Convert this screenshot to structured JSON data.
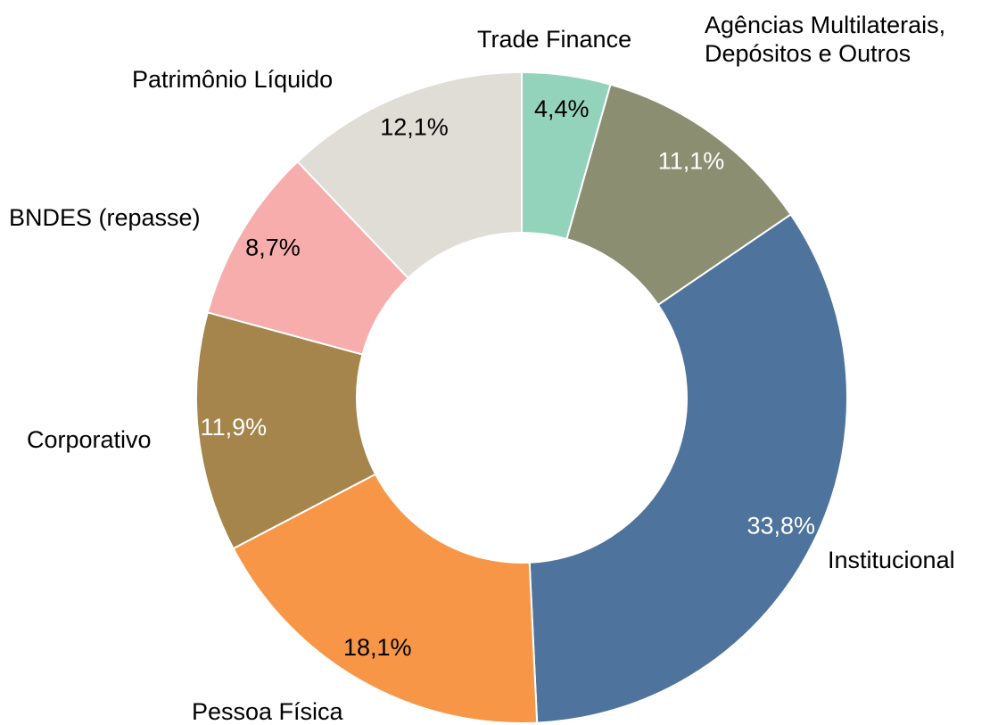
{
  "chart_data": {
    "type": "donut",
    "categories": [
      "Trade Finance",
      "Agências Multilaterais, Depósitos e Outros",
      "Institucional",
      "Pessoa Física",
      "Corporativo",
      "BNDES (repasse)",
      "Patrimônio Líquido"
    ],
    "values": [
      4.4,
      11.1,
      33.8,
      18.1,
      11.9,
      8.7,
      12.1
    ],
    "value_labels": [
      "4,4%",
      "11,1%",
      "33,8%",
      "18,1%",
      "11,9%",
      "8,7%",
      "12,1%"
    ],
    "colors": [
      "#93d3bc",
      "#8b8e70",
      "#4e739c",
      "#f79646",
      "#a5854b",
      "#f7adab",
      "#dfddd6"
    ],
    "label_colors": [
      "#000000",
      "#ffffff",
      "#ffffff",
      "#000000",
      "#ffffff",
      "#000000",
      "#000000"
    ]
  }
}
